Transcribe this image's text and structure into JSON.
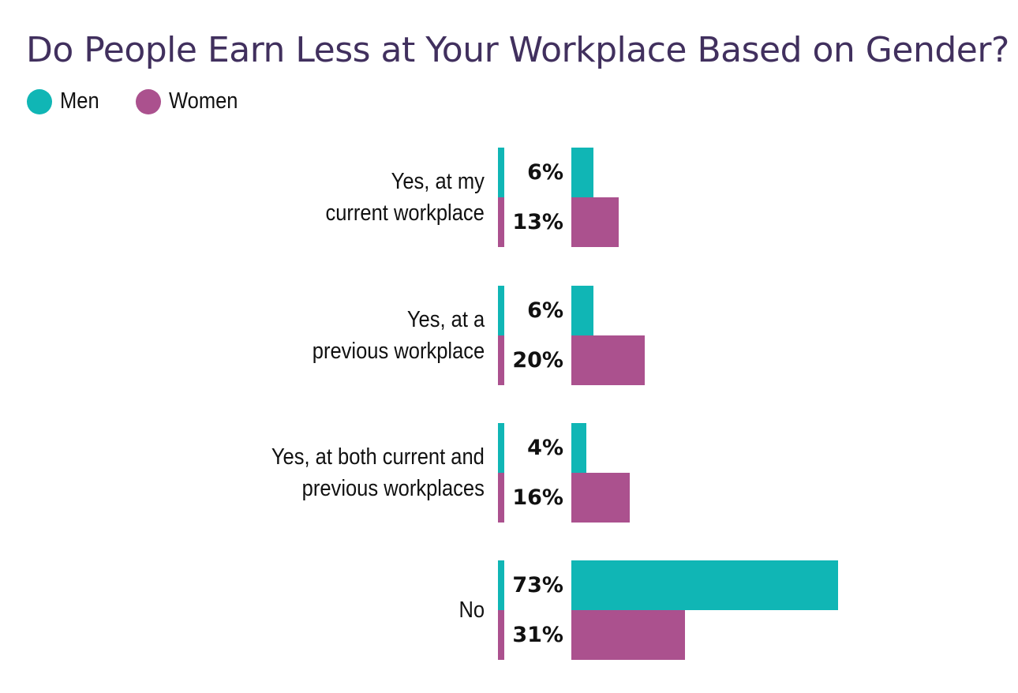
{
  "title": "Do People Earn Less at Your Workplace Based on Gender?",
  "colors": {
    "men": "#10b6b5",
    "women": "#ab518e",
    "title": "#41305e"
  },
  "legend": [
    {
      "label": "Men",
      "color": "#10b6b5"
    },
    {
      "label": "Women",
      "color": "#ab518e"
    }
  ],
  "groups": [
    {
      "label": "Yes, at my\ncurrent workplace",
      "men": "6%",
      "women": "13%"
    },
    {
      "label": "Yes, at a\nprevious workplace",
      "men": "6%",
      "women": "20%"
    },
    {
      "label": "Yes, at both current and\nprevious workplaces",
      "men": "4%",
      "women": "16%"
    },
    {
      "label": "No",
      "men": "73%",
      "women": "31%"
    }
  ],
  "chart_data": {
    "type": "bar",
    "orientation": "horizontal",
    "title": "Do People Earn Less at Your Workplace Based on Gender?",
    "categories": [
      "Yes, at my current workplace",
      "Yes, at a previous workplace",
      "Yes, at both current and previous workplaces",
      "No"
    ],
    "series": [
      {
        "name": "Men",
        "color": "#10b6b5",
        "values": [
          6,
          6,
          4,
          73
        ]
      },
      {
        "name": "Women",
        "color": "#ab518e",
        "values": [
          13,
          20,
          16,
          31
        ]
      }
    ],
    "xlabel": "",
    "ylabel": "",
    "unit": "%",
    "grid": false,
    "legend_position": "top-left",
    "data_labels": true
  }
}
